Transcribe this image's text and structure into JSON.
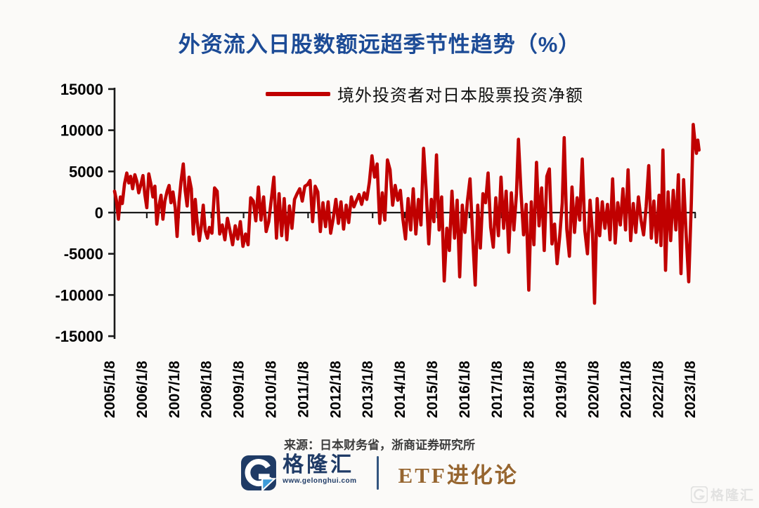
{
  "title": {
    "text": "外资流入日股数额远超季节性趋势（%）"
  },
  "source": {
    "text": "来源：日本财务省，浙商证券研究所"
  },
  "footer": {
    "brand_name": "格隆汇",
    "brand_url": "www.gelonghui.com",
    "channel_label": "ETF进化论"
  },
  "watermark": {
    "text": "格隆汇"
  },
  "colors": {
    "title_blue": "#1C4B96",
    "series_red": "#C00000",
    "axis_black": "#1A1A1A",
    "brand_navy": "#1F3B66",
    "brand_lightblue": "#3D9BD9",
    "channel_brown": "#96652F"
  },
  "chart_data": {
    "type": "line",
    "title": "外资流入日股数额远超季节性趋势（%）",
    "legend_position": "top",
    "grid": false,
    "ylim": [
      -15000,
      15000
    ],
    "xlim": [
      2005.0,
      2023.2
    ],
    "y_axis": {
      "ticks": [
        15000,
        10000,
        5000,
        0,
        -5000,
        -10000,
        -15000
      ]
    },
    "x_axis": {
      "tick_labels": [
        "2005/1/8",
        "2006/1/8",
        "2007/1/8",
        "2008/1/8",
        "2009/1/8",
        "2010/1/8",
        "2011/1/8",
        "2012/1/8",
        "2013/1/8",
        "2014/1/8",
        "2015/1/8",
        "2016/1/8",
        "2017/1/8",
        "2018/1/8",
        "2019/1/8",
        "2020/1/8",
        "2021/1/8",
        "2022/1/8",
        "2023/1/8"
      ]
    },
    "series": [
      {
        "name": "境外投资者对日本股票投资净额",
        "color": "#C00000",
        "points": [
          [
            2005.02,
            2600
          ],
          [
            2005.08,
            1400
          ],
          [
            2005.14,
            -800
          ],
          [
            2005.2,
            1900
          ],
          [
            2005.26,
            1100
          ],
          [
            2005.33,
            3500
          ],
          [
            2005.4,
            4800
          ],
          [
            2005.46,
            3600
          ],
          [
            2005.52,
            4400
          ],
          [
            2005.58,
            2900
          ],
          [
            2005.65,
            4600
          ],
          [
            2005.71,
            3800
          ],
          [
            2005.77,
            2400
          ],
          [
            2005.83,
            3300
          ],
          [
            2005.9,
            4500
          ],
          [
            2005.96,
            2200
          ],
          [
            2006.02,
            600
          ],
          [
            2006.08,
            4700
          ],
          [
            2006.15,
            3400
          ],
          [
            2006.21,
            1900
          ],
          [
            2006.27,
            3200
          ],
          [
            2006.33,
            -1400
          ],
          [
            2006.4,
            900
          ],
          [
            2006.46,
            2100
          ],
          [
            2006.52,
            -800
          ],
          [
            2006.58,
            1400
          ],
          [
            2006.65,
            2600
          ],
          [
            2006.71,
            3300
          ],
          [
            2006.77,
            1200
          ],
          [
            2006.83,
            2500
          ],
          [
            2006.9,
            600
          ],
          [
            2006.96,
            -2900
          ],
          [
            2007.02,
            1300
          ],
          [
            2007.08,
            3800
          ],
          [
            2007.15,
            5900
          ],
          [
            2007.21,
            2700
          ],
          [
            2007.27,
            800
          ],
          [
            2007.33,
            4300
          ],
          [
            2007.4,
            2900
          ],
          [
            2007.46,
            -2600
          ],
          [
            2007.52,
            1600
          ],
          [
            2007.58,
            -1100
          ],
          [
            2007.65,
            -3400
          ],
          [
            2007.71,
            -1600
          ],
          [
            2007.77,
            900
          ],
          [
            2007.83,
            -2200
          ],
          [
            2007.9,
            -3100
          ],
          [
            2007.96,
            -1800
          ],
          [
            2008.04,
            -2500
          ],
          [
            2008.12,
            3000
          ],
          [
            2008.2,
            2600
          ],
          [
            2008.28,
            -2600
          ],
          [
            2008.36,
            -1500
          ],
          [
            2008.44,
            -3300
          ],
          [
            2008.52,
            -700
          ],
          [
            2008.6,
            -2200
          ],
          [
            2008.68,
            -3900
          ],
          [
            2008.76,
            -1600
          ],
          [
            2008.84,
            -3200
          ],
          [
            2008.92,
            -1100
          ],
          [
            2009.0,
            -4100
          ],
          [
            2009.08,
            -2600
          ],
          [
            2009.16,
            -3900
          ],
          [
            2009.24,
            1800
          ],
          [
            2009.32,
            1400
          ],
          [
            2009.4,
            -1000
          ],
          [
            2009.48,
            3100
          ],
          [
            2009.56,
            -900
          ],
          [
            2009.64,
            1900
          ],
          [
            2009.72,
            -2300
          ],
          [
            2009.8,
            -1100
          ],
          [
            2009.88,
            1600
          ],
          [
            2009.96,
            4300
          ],
          [
            2010.04,
            -3100
          ],
          [
            2010.12,
            2300
          ],
          [
            2010.2,
            -2800
          ],
          [
            2010.28,
            1700
          ],
          [
            2010.36,
            -3300
          ],
          [
            2010.44,
            800
          ],
          [
            2010.52,
            -1900
          ],
          [
            2010.6,
            1600
          ],
          [
            2010.68,
            2300
          ],
          [
            2010.76,
            2900
          ],
          [
            2010.84,
            1400
          ],
          [
            2010.92,
            3200
          ],
          [
            2011.0,
            3400
          ],
          [
            2011.08,
            3900
          ],
          [
            2011.16,
            -1100
          ],
          [
            2011.24,
            3200
          ],
          [
            2011.32,
            2500
          ],
          [
            2011.4,
            -2300
          ],
          [
            2011.48,
            1200
          ],
          [
            2011.56,
            -1700
          ],
          [
            2011.64,
            1300
          ],
          [
            2011.72,
            -2500
          ],
          [
            2011.8,
            -700
          ],
          [
            2011.88,
            1600
          ],
          [
            2011.96,
            -1300
          ],
          [
            2012.04,
            1300
          ],
          [
            2012.12,
            -2000
          ],
          [
            2012.2,
            900
          ],
          [
            2012.28,
            -1200
          ],
          [
            2012.36,
            1900
          ],
          [
            2012.44,
            700
          ],
          [
            2012.52,
            1500
          ],
          [
            2012.6,
            2200
          ],
          [
            2012.68,
            1000
          ],
          [
            2012.76,
            2400
          ],
          [
            2012.84,
            1600
          ],
          [
            2012.92,
            3700
          ],
          [
            2013.0,
            6900
          ],
          [
            2013.08,
            4300
          ],
          [
            2013.16,
            5900
          ],
          [
            2013.24,
            -1300
          ],
          [
            2013.32,
            2400
          ],
          [
            2013.4,
            -900
          ],
          [
            2013.48,
            6400
          ],
          [
            2013.56,
            5200
          ],
          [
            2013.64,
            900
          ],
          [
            2013.72,
            3300
          ],
          [
            2013.8,
            1500
          ],
          [
            2013.88,
            2700
          ],
          [
            2013.96,
            -800
          ],
          [
            2014.04,
            -3200
          ],
          [
            2014.12,
            1700
          ],
          [
            2014.2,
            -2100
          ],
          [
            2014.28,
            2900
          ],
          [
            2014.36,
            -2600
          ],
          [
            2014.44,
            1600
          ],
          [
            2014.52,
            -1500
          ],
          [
            2014.6,
            7800
          ],
          [
            2014.68,
            2700
          ],
          [
            2014.76,
            -3800
          ],
          [
            2014.84,
            1600
          ],
          [
            2014.92,
            -1100
          ],
          [
            2015.0,
            7000
          ],
          [
            2015.08,
            -2100
          ],
          [
            2015.16,
            1900
          ],
          [
            2015.24,
            -8300
          ],
          [
            2015.32,
            -1900
          ],
          [
            2015.4,
            -4600
          ],
          [
            2015.48,
            2600
          ],
          [
            2015.56,
            -3100
          ],
          [
            2015.64,
            1500
          ],
          [
            2015.72,
            -7800
          ],
          [
            2015.8,
            900
          ],
          [
            2015.88,
            -2400
          ],
          [
            2015.96,
            1400
          ],
          [
            2016.04,
            4100
          ],
          [
            2016.12,
            -2700
          ],
          [
            2016.2,
            -8800
          ],
          [
            2016.28,
            900
          ],
          [
            2016.36,
            -4300
          ],
          [
            2016.44,
            2300
          ],
          [
            2016.52,
            1200
          ],
          [
            2016.6,
            4800
          ],
          [
            2016.68,
            -1800
          ],
          [
            2016.76,
            -4200
          ],
          [
            2016.84,
            1800
          ],
          [
            2016.92,
            -2800
          ],
          [
            2017.0,
            4300
          ],
          [
            2017.08,
            -1900
          ],
          [
            2017.16,
            2600
          ],
          [
            2017.24,
            -4800
          ],
          [
            2017.32,
            2400
          ],
          [
            2017.4,
            -2100
          ],
          [
            2017.48,
            2300
          ],
          [
            2017.54,
            8900
          ],
          [
            2017.62,
            2500
          ],
          [
            2017.7,
            -2700
          ],
          [
            2017.78,
            1000
          ],
          [
            2017.86,
            -9400
          ],
          [
            2017.94,
            1300
          ],
          [
            2018.02,
            -3900
          ],
          [
            2018.1,
            6100
          ],
          [
            2018.18,
            -1600
          ],
          [
            2018.26,
            3000
          ],
          [
            2018.34,
            -4600
          ],
          [
            2018.42,
            4400
          ],
          [
            2018.5,
            5300
          ],
          [
            2018.58,
            -3800
          ],
          [
            2018.66,
            -1400
          ],
          [
            2018.74,
            -6200
          ],
          [
            2018.82,
            -2900
          ],
          [
            2018.9,
            1200
          ],
          [
            2018.96,
            9100
          ],
          [
            2019.04,
            -2000
          ],
          [
            2019.12,
            -5300
          ],
          [
            2019.2,
            3100
          ],
          [
            2019.28,
            -2400
          ],
          [
            2019.36,
            1800
          ],
          [
            2019.44,
            -900
          ],
          [
            2019.52,
            6500
          ],
          [
            2019.6,
            -2200
          ],
          [
            2019.68,
            -5000
          ],
          [
            2019.76,
            1500
          ],
          [
            2019.84,
            -2600
          ],
          [
            2019.9,
            -11000
          ],
          [
            2019.98,
            1700
          ],
          [
            2020.06,
            -2800
          ],
          [
            2020.14,
            1300
          ],
          [
            2020.22,
            -1900
          ],
          [
            2020.3,
            1000
          ],
          [
            2020.38,
            -3300
          ],
          [
            2020.46,
            4100
          ],
          [
            2020.54,
            -3700
          ],
          [
            2020.62,
            1200
          ],
          [
            2020.7,
            -1500
          ],
          [
            2020.78,
            2900
          ],
          [
            2020.86,
            -2100
          ],
          [
            2020.94,
            5200
          ],
          [
            2021.02,
            -3400
          ],
          [
            2021.1,
            1100
          ],
          [
            2021.18,
            -2400
          ],
          [
            2021.26,
            1900
          ],
          [
            2021.34,
            -900
          ],
          [
            2021.42,
            -2700
          ],
          [
            2021.5,
            700
          ],
          [
            2021.58,
            5700
          ],
          [
            2021.66,
            -3100
          ],
          [
            2021.74,
            1400
          ],
          [
            2021.82,
            -3600
          ],
          [
            2021.9,
            2100
          ],
          [
            2021.96,
            -4000
          ],
          [
            2022.02,
            7600
          ],
          [
            2022.1,
            -7000
          ],
          [
            2022.18,
            2500
          ],
          [
            2022.26,
            -3400
          ],
          [
            2022.34,
            2700
          ],
          [
            2022.42,
            -2100
          ],
          [
            2022.5,
            4600
          ],
          [
            2022.58,
            -7400
          ],
          [
            2022.66,
            4000
          ],
          [
            2022.74,
            -2600
          ],
          [
            2022.82,
            -8400
          ],
          [
            2022.9,
            1200
          ],
          [
            2022.96,
            10700
          ],
          [
            2023.02,
            8300
          ],
          [
            2023.06,
            7200
          ],
          [
            2023.1,
            8800
          ],
          [
            2023.14,
            7600
          ]
        ]
      }
    ]
  }
}
